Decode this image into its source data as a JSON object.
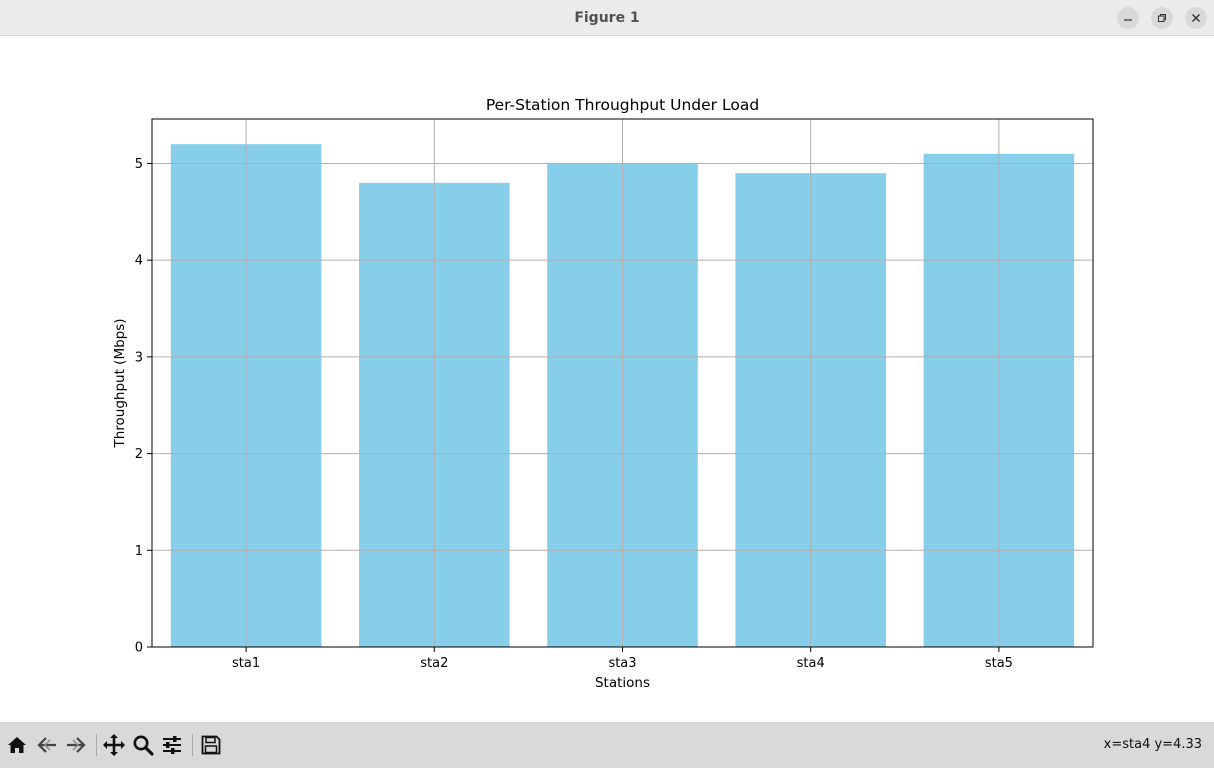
{
  "window": {
    "title": "Figure 1",
    "controls": [
      "minimize",
      "maximize",
      "close"
    ]
  },
  "toolbar": {
    "buttons": [
      "home",
      "back",
      "forward",
      "pan",
      "zoom",
      "configure-subplots",
      "save"
    ],
    "coords_text": "x=sta4 y=4.33"
  },
  "colors": {
    "bar": "#87ceeb",
    "grid": "#b0b0b0",
    "axes": "#000000"
  },
  "chart_data": {
    "type": "bar",
    "title": "Per-Station Throughput Under Load",
    "xlabel": "Stations",
    "ylabel": "Throughput (Mbps)",
    "categories": [
      "sta1",
      "sta2",
      "sta3",
      "sta4",
      "sta5"
    ],
    "values": [
      5.2,
      4.8,
      5.0,
      4.9,
      5.1
    ],
    "ylim": [
      0,
      5.46
    ],
    "yticks": [
      0,
      1,
      2,
      3,
      4,
      5
    ],
    "grid": true,
    "legend": "none"
  }
}
